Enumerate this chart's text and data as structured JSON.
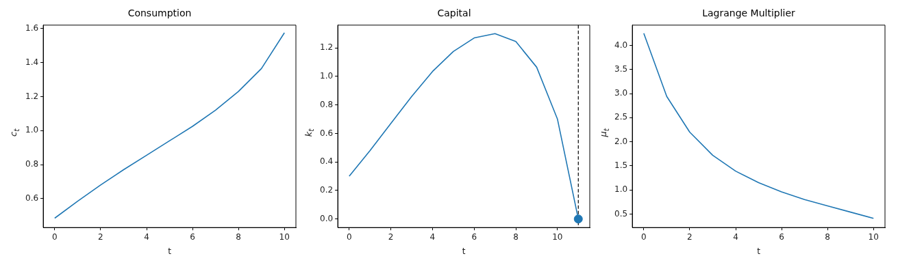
{
  "chart_data": [
    {
      "type": "line",
      "title": "Consumption",
      "xlabel": "t",
      "ylabel": "c$_{t}$",
      "x": [
        0,
        1,
        2,
        3,
        4,
        5,
        6,
        7,
        8,
        9,
        10
      ],
      "values": [
        0.485,
        0.585,
        0.68,
        0.77,
        0.855,
        0.94,
        1.025,
        1.12,
        1.23,
        1.365,
        1.575
      ],
      "color": "#1f77b4",
      "xlim": [
        -0.5,
        10.5
      ],
      "xticks": [
        0,
        2,
        4,
        6,
        8,
        10
      ],
      "ylim": [
        0.43,
        1.62
      ],
      "yticks": [
        0.6,
        0.8,
        {
          "value": 1,
          "label": "1.0"
        },
        1.2,
        1.4,
        1.6
      ],
      "grid": false
    },
    {
      "type": "line",
      "title": "Capital",
      "xlabel": "t",
      "ylabel": "k$_{t}$",
      "series": [
        {
          "color": "#1f77b4",
          "x": [
            0,
            1,
            2,
            3,
            4,
            5,
            6,
            7,
            8,
            9,
            10,
            11
          ],
          "values": [
            0.3,
            0.48,
            0.67,
            0.86,
            1.035,
            1.175,
            1.27,
            1.3,
            1.245,
            1.065,
            0.7,
            0
          ]
        },
        {
          "type": "scatter",
          "color": "#1f77b4",
          "x": [
            11
          ],
          "values": [
            0
          ],
          "marker": "circle"
        }
      ],
      "ref_lines": [
        {
          "axis": "x",
          "value": 11,
          "color": "#000000",
          "line_style": "dashed"
        }
      ],
      "xlim": [
        -0.55,
        11.55
      ],
      "xticks": [
        0,
        2,
        4,
        6,
        8,
        10
      ],
      "ylim": [
        -0.06,
        1.36
      ],
      "yticks": [
        {
          "value": 0,
          "label": "0.0"
        },
        0.2,
        0.4,
        0.6,
        0.8,
        {
          "value": 1,
          "label": "1.0"
        },
        1.2
      ],
      "grid": false
    },
    {
      "type": "line",
      "title": "Lagrange Multiplier",
      "xlabel": "t",
      "ylabel": "μ$_{t}$",
      "x": [
        0,
        1,
        2,
        3,
        4,
        5,
        6,
        7,
        8,
        9,
        10
      ],
      "values": [
        4.25,
        2.94,
        2.2,
        1.72,
        1.39,
        1.15,
        0.96,
        0.8,
        0.67,
        0.54,
        0.41
      ],
      "color": "#1f77b4",
      "xlim": [
        -0.5,
        10.5
      ],
      "xticks": [
        0,
        2,
        4,
        6,
        8,
        10
      ],
      "ylim": [
        0.22,
        4.42
      ],
      "yticks": [
        0.5,
        {
          "value": 1,
          "label": "1.0"
        },
        1.5,
        {
          "value": 2,
          "label": "2.0"
        },
        2.5,
        {
          "value": 3,
          "label": "3.0"
        },
        3.5,
        {
          "value": 4,
          "label": "4.0"
        }
      ],
      "grid": false
    }
  ]
}
